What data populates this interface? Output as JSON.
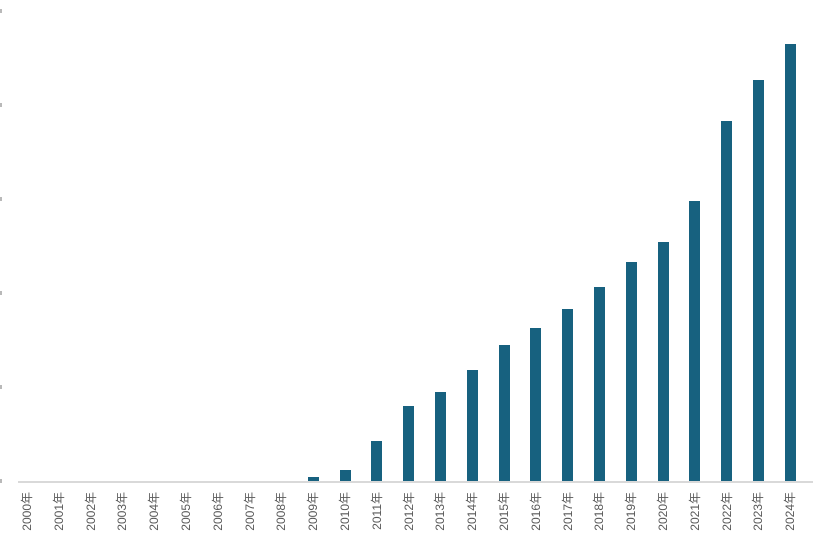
{
  "chart_data": {
    "type": "bar",
    "title": "",
    "xlabel": "",
    "ylabel": "",
    "categories": [
      "2000年",
      "2001年",
      "2002年",
      "2003年",
      "2004年",
      "2005年",
      "2006年",
      "2007年",
      "2008年",
      "2009年",
      "2010年",
      "2011年",
      "2012年",
      "2013年",
      "2014年",
      "2015年",
      "2016年",
      "2017年",
      "2018年",
      "2019年",
      "2020年",
      "2021年",
      "2022年",
      "2023年",
      "2024年"
    ],
    "values": [
      0,
      0,
      0,
      0,
      0,
      0,
      0,
      0,
      0,
      0.04,
      0.12,
      0.43,
      0.8,
      0.95,
      1.18,
      1.45,
      1.63,
      1.83,
      2.06,
      2.33,
      2.54,
      2.98,
      3.83,
      4.27,
      4.65
    ],
    "series_name": "",
    "ylim": [
      0,
      5
    ],
    "y_tick_interval": 1,
    "y_tick_count": 6,
    "y_tick_labels_visible": false,
    "x_label_rotation_deg": -90,
    "grid": false,
    "legend": false,
    "bar_color": "#17617f",
    "axis_line_color": "#d9d9d9",
    "tick_mark_color": "#b9b9b9",
    "label_color": "#595959",
    "background_color": "#ffffff"
  }
}
